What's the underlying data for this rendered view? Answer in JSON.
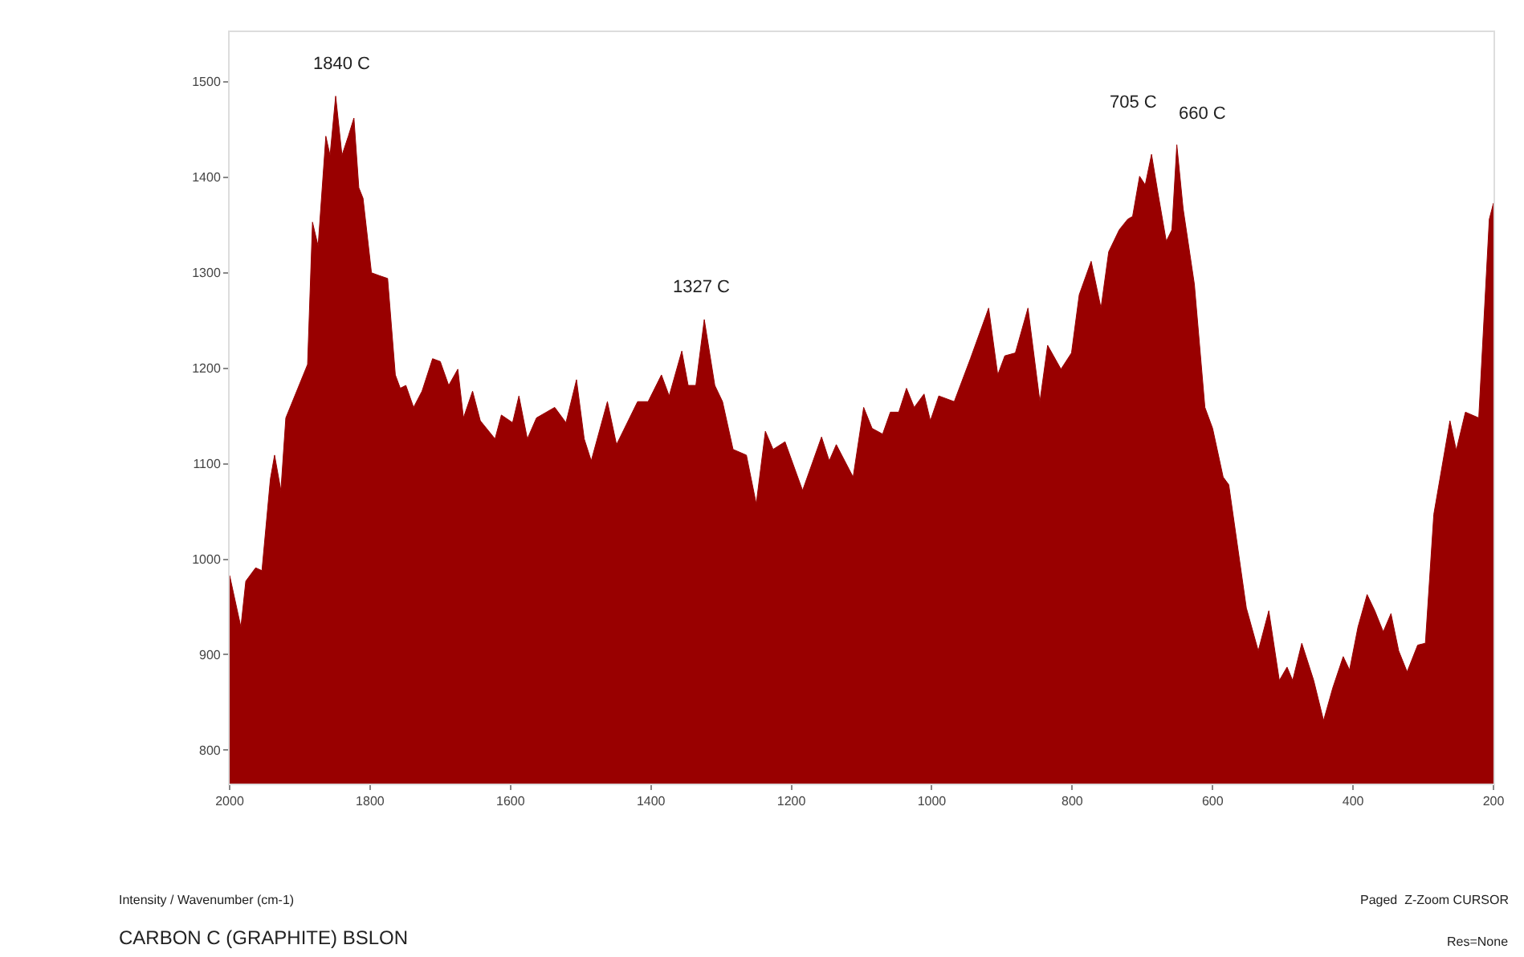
{
  "chart_data": {
    "type": "area",
    "x": [
      2000,
      1984,
      1977,
      1963,
      1954,
      1942,
      1936,
      1927,
      1920,
      1889,
      1882,
      1874,
      1863,
      1857,
      1849,
      1840,
      1831,
      1823,
      1816,
      1810,
      1798,
      1787,
      1775,
      1764,
      1757,
      1749,
      1738,
      1726,
      1711,
      1700,
      1688,
      1675,
      1667,
      1654,
      1643,
      1622,
      1613,
      1597,
      1588,
      1576,
      1563,
      1537,
      1521,
      1506,
      1495,
      1485,
      1462,
      1449,
      1419,
      1404,
      1385,
      1374,
      1356,
      1347,
      1336,
      1324,
      1309,
      1298,
      1283,
      1264,
      1250,
      1237,
      1226,
      1209,
      1184,
      1157,
      1146,
      1136,
      1112,
      1097,
      1085,
      1070,
      1059,
      1047,
      1036,
      1025,
      1011,
      1002,
      990,
      968,
      945,
      919,
      906,
      896,
      881,
      863,
      846,
      835,
      816,
      801,
      790,
      773,
      759,
      748,
      733,
      721,
      714,
      704,
      696,
      687,
      678,
      666,
      658,
      651,
      642,
      626,
      611,
      600,
      585,
      577,
      552,
      535,
      520,
      505,
      494,
      486,
      473,
      456,
      442,
      429,
      414,
      405,
      393,
      380,
      369,
      357,
      346,
      335,
      323,
      308,
      297,
      285,
      262,
      253,
      240,
      221,
      206,
      200
    ],
    "series": [
      {
        "color": "#990000",
        "values": [
          983,
          929,
          977,
          991,
          988,
          1084,
          1109,
          1072,
          1148,
          1204,
          1353,
          1328,
          1443,
          1423,
          1485,
          1423,
          1443,
          1462,
          1389,
          1378,
          1300,
          1297,
          1294,
          1193,
          1179,
          1182,
          1159,
          1176,
          1210,
          1207,
          1182,
          1199,
          1148,
          1176,
          1145,
          1126,
          1151,
          1143,
          1171,
          1126,
          1148,
          1159,
          1143,
          1188,
          1126,
          1103,
          1165,
          1120,
          1165,
          1165,
          1193,
          1171,
          1218,
          1182,
          1182,
          1251,
          1182,
          1165,
          1115,
          1109,
          1058,
          1134,
          1115,
          1123,
          1072,
          1128,
          1103,
          1120,
          1086,
          1159,
          1137,
          1131,
          1154,
          1154,
          1179,
          1159,
          1173,
          1145,
          1171,
          1165,
          1210,
          1263,
          1193,
          1213,
          1216,
          1263,
          1165,
          1224,
          1199,
          1216,
          1277,
          1312,
          1263,
          1322,
          1345,
          1356,
          1359,
          1401,
          1392,
          1424,
          1384,
          1333,
          1345,
          1434,
          1367,
          1288,
          1159,
          1137,
          1086,
          1078,
          949,
          904,
          946,
          873,
          887,
          873,
          912,
          873,
          831,
          865,
          898,
          884,
          929,
          963,
          946,
          924,
          943,
          904,
          882,
          910,
          912,
          1047,
          1145,
          1114,
          1154,
          1148,
          1356,
          1373
        ]
      }
    ],
    "xlim": [
      2000,
      200
    ],
    "xticks": [
      2000,
      1800,
      1600,
      1400,
      1200,
      1000,
      800,
      600,
      400,
      200
    ],
    "ylim": [
      765,
      1552
    ],
    "yticks": [
      800,
      900,
      1000,
      1100,
      1200,
      1300,
      1400,
      1500
    ],
    "marker": "none",
    "annotations": [
      {
        "text": "1840 C",
        "x": 1840,
        "y": 1485
      },
      {
        "text": "1327 C",
        "x": 1327,
        "y": 1251
      },
      "705 C",
      "660 C",
      "Intensity / Wavenumber (cm-1)",
      "CARBON C (GRAPHITE) BSLON",
      "Paged  Z-Zoom CURSOR",
      "Res=None"
    ]
  }
}
